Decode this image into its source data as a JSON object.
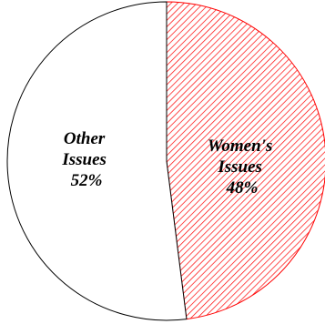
{
  "chart_data": {
    "type": "pie",
    "slices": [
      {
        "label_lines": [
          "Women's",
          "Issues",
          "48%"
        ],
        "value": 48,
        "fill": "hatched",
        "color": "#ff0000"
      },
      {
        "label_lines": [
          "Other",
          "Issues",
          "52%"
        ],
        "value": 52,
        "fill": "solid",
        "color": "#ffffff"
      }
    ],
    "outline_color": "#000000"
  }
}
